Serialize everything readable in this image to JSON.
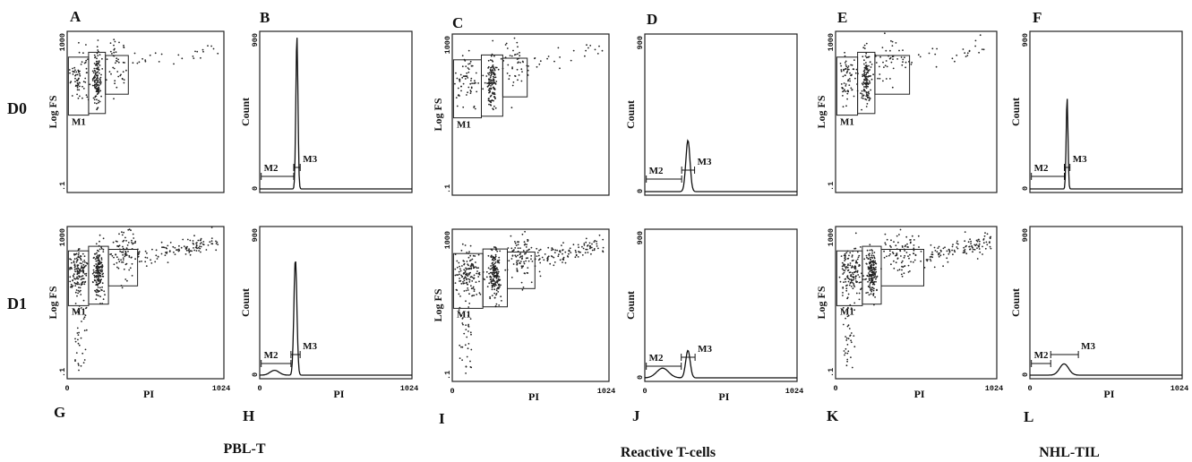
{
  "figure": {
    "row_labels": [
      "D0",
      "D1"
    ],
    "group_labels": [
      "PBL-T",
      "Reactive T-cells",
      "NHL-TIL"
    ]
  },
  "chart_data": [
    {
      "id": "A",
      "type": "scatter",
      "xlabel": "",
      "ylabel": "Log FS",
      "y_ticks": [
        "1000",
        ".1"
      ],
      "x_ticks": [],
      "markers": [
        "M1"
      ],
      "gates": [
        [
          8,
          140
        ],
        [
          140,
          250
        ],
        [
          250,
          400
        ]
      ],
      "log_y": true,
      "ylim": [
        0.1,
        1000
      ],
      "xlim": [
        0,
        1024
      ]
    },
    {
      "id": "B",
      "type": "histogram",
      "xlabel": "",
      "ylabel": "Count",
      "y_ticks": [
        "900",
        "0"
      ],
      "x_ticks": [],
      "markers": [
        "M2",
        "M3"
      ],
      "ylim": [
        0,
        900
      ],
      "xlim": [
        0,
        1024
      ],
      "peaks": [
        {
          "x": 250,
          "height": 900,
          "width": 14
        }
      ]
    },
    {
      "id": "C",
      "type": "scatter",
      "xlabel": "",
      "ylabel": "Log FS",
      "y_ticks": [
        "1000",
        ".1"
      ],
      "x_ticks": [],
      "markers": [
        "M1"
      ],
      "gates": [
        [
          8,
          190
        ],
        [
          190,
          330
        ],
        [
          330,
          490
        ]
      ],
      "log_y": true,
      "ylim": [
        0.1,
        1000
      ],
      "xlim": [
        0,
        1024
      ]
    },
    {
      "id": "D",
      "type": "histogram",
      "xlabel": "",
      "ylabel": "Count",
      "y_ticks": [
        "900",
        "0"
      ],
      "x_ticks": [],
      "markers": [
        "M2",
        "M3"
      ],
      "ylim": [
        0,
        900
      ],
      "xlim": [
        0,
        1024
      ],
      "peaks": [
        {
          "x": 290,
          "height": 300,
          "width": 28
        }
      ]
    },
    {
      "id": "E",
      "type": "scatter",
      "xlabel": "",
      "ylabel": "Log FS",
      "y_ticks": [
        "1000",
        ".1"
      ],
      "x_ticks": [],
      "markers": [
        "M1"
      ],
      "gates": [
        [
          8,
          140
        ],
        [
          140,
          250
        ],
        [
          250,
          470
        ]
      ],
      "log_y": true,
      "ylim": [
        0.1,
        1000
      ],
      "xlim": [
        0,
        1024
      ]
    },
    {
      "id": "F",
      "type": "histogram",
      "xlabel": "",
      "ylabel": "Count",
      "y_ticks": [
        "900",
        "0"
      ],
      "x_ticks": [],
      "markers": [
        "M2",
        "M3"
      ],
      "ylim": [
        0,
        900
      ],
      "xlim": [
        0,
        1024
      ],
      "peaks": [
        {
          "x": 250,
          "height": 540,
          "width": 12
        }
      ]
    },
    {
      "id": "G",
      "type": "scatter",
      "xlabel": "PI",
      "ylabel": "Log FS",
      "y_ticks": [
        "1000",
        ".1"
      ],
      "x_ticks": [
        "0",
        "1024"
      ],
      "markers": [
        "M1"
      ],
      "gates": [
        [
          8,
          140
        ],
        [
          140,
          270
        ],
        [
          270,
          460
        ]
      ],
      "log_y": true,
      "ylim": [
        0.1,
        1000
      ],
      "xlim": [
        0,
        1024
      ]
    },
    {
      "id": "H",
      "type": "histogram",
      "xlabel": "PI",
      "ylabel": "Count",
      "y_ticks": [
        "900",
        "0"
      ],
      "x_ticks": [
        "0",
        "1024"
      ],
      "markers": [
        "M2",
        "M3"
      ],
      "ylim": [
        0,
        900
      ],
      "xlim": [
        0,
        1024
      ],
      "peaks": [
        {
          "x": 240,
          "height": 720,
          "width": 20
        },
        {
          "x": 100,
          "height": 30,
          "width": 60
        }
      ]
    },
    {
      "id": "I",
      "type": "scatter",
      "xlabel": "PI",
      "ylabel": "Log FS",
      "y_ticks": [
        "1000",
        ".1"
      ],
      "x_ticks": [
        "0",
        "1024"
      ],
      "markers": [
        "M1"
      ],
      "gates": [
        [
          8,
          200
        ],
        [
          200,
          360
        ],
        [
          360,
          540
        ]
      ],
      "log_y": true,
      "ylim": [
        0.1,
        1000
      ],
      "xlim": [
        0,
        1024
      ]
    },
    {
      "id": "J",
      "type": "histogram",
      "xlabel": "PI",
      "ylabel": "Count",
      "y_ticks": [
        "900",
        "0"
      ],
      "x_ticks": [
        "0",
        "1024"
      ],
      "markers": [
        "M2",
        "M3"
      ],
      "ylim": [
        0,
        900
      ],
      "xlim": [
        0,
        1024
      ],
      "peaks": [
        {
          "x": 290,
          "height": 170,
          "width": 30
        },
        {
          "x": 120,
          "height": 60,
          "width": 80
        }
      ]
    },
    {
      "id": "K",
      "type": "scatter",
      "xlabel": "PI",
      "ylabel": "Log FS",
      "y_ticks": [
        "1000",
        ".1"
      ],
      "x_ticks": [
        "0",
        "1024"
      ],
      "markers": [
        "M1"
      ],
      "gates": [
        [
          8,
          170
        ],
        [
          170,
          290
        ],
        [
          290,
          560
        ]
      ],
      "log_y": true,
      "ylim": [
        0.1,
        1000
      ],
      "xlim": [
        0,
        1024
      ]
    },
    {
      "id": "L",
      "type": "histogram",
      "xlabel": "PI",
      "ylabel": "Count",
      "y_ticks": [
        "900",
        "0"
      ],
      "x_ticks": [
        "0",
        "1024"
      ],
      "markers": [
        "M2",
        "M3"
      ],
      "ylim": [
        0,
        900
      ],
      "xlim": [
        0,
        1024
      ],
      "peaks": [
        {
          "x": 230,
          "height": 70,
          "width": 60
        }
      ]
    }
  ]
}
